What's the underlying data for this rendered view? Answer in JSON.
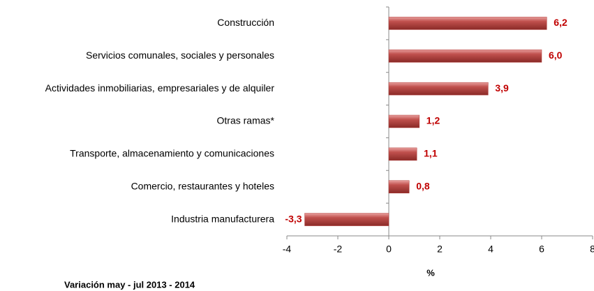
{
  "chart_data": {
    "type": "bar",
    "orientation": "horizontal",
    "categories": [
      "Construcción",
      "Servicios comunales, sociales y personales",
      "Actividades inmobiliarias, empresariales y de alquiler",
      "Otras ramas*",
      "Transporte, almacenamiento y comunicaciones",
      "Comercio, restaurantes y hoteles",
      "Industria manufacturera"
    ],
    "values": [
      6.2,
      6.0,
      3.9,
      1.2,
      1.1,
      0.8,
      -3.3
    ],
    "value_labels": [
      "6,2",
      "6,0",
      "3,9",
      "1,2",
      "1,1",
      "0,8",
      "-3,3"
    ],
    "color": "#b33a37",
    "xlim": [
      -4,
      8
    ],
    "xticks": [
      -4,
      -2,
      0,
      2,
      4,
      6,
      8
    ],
    "x_label": "%",
    "footnote": "Variación may - jul 2013 - 2014"
  }
}
